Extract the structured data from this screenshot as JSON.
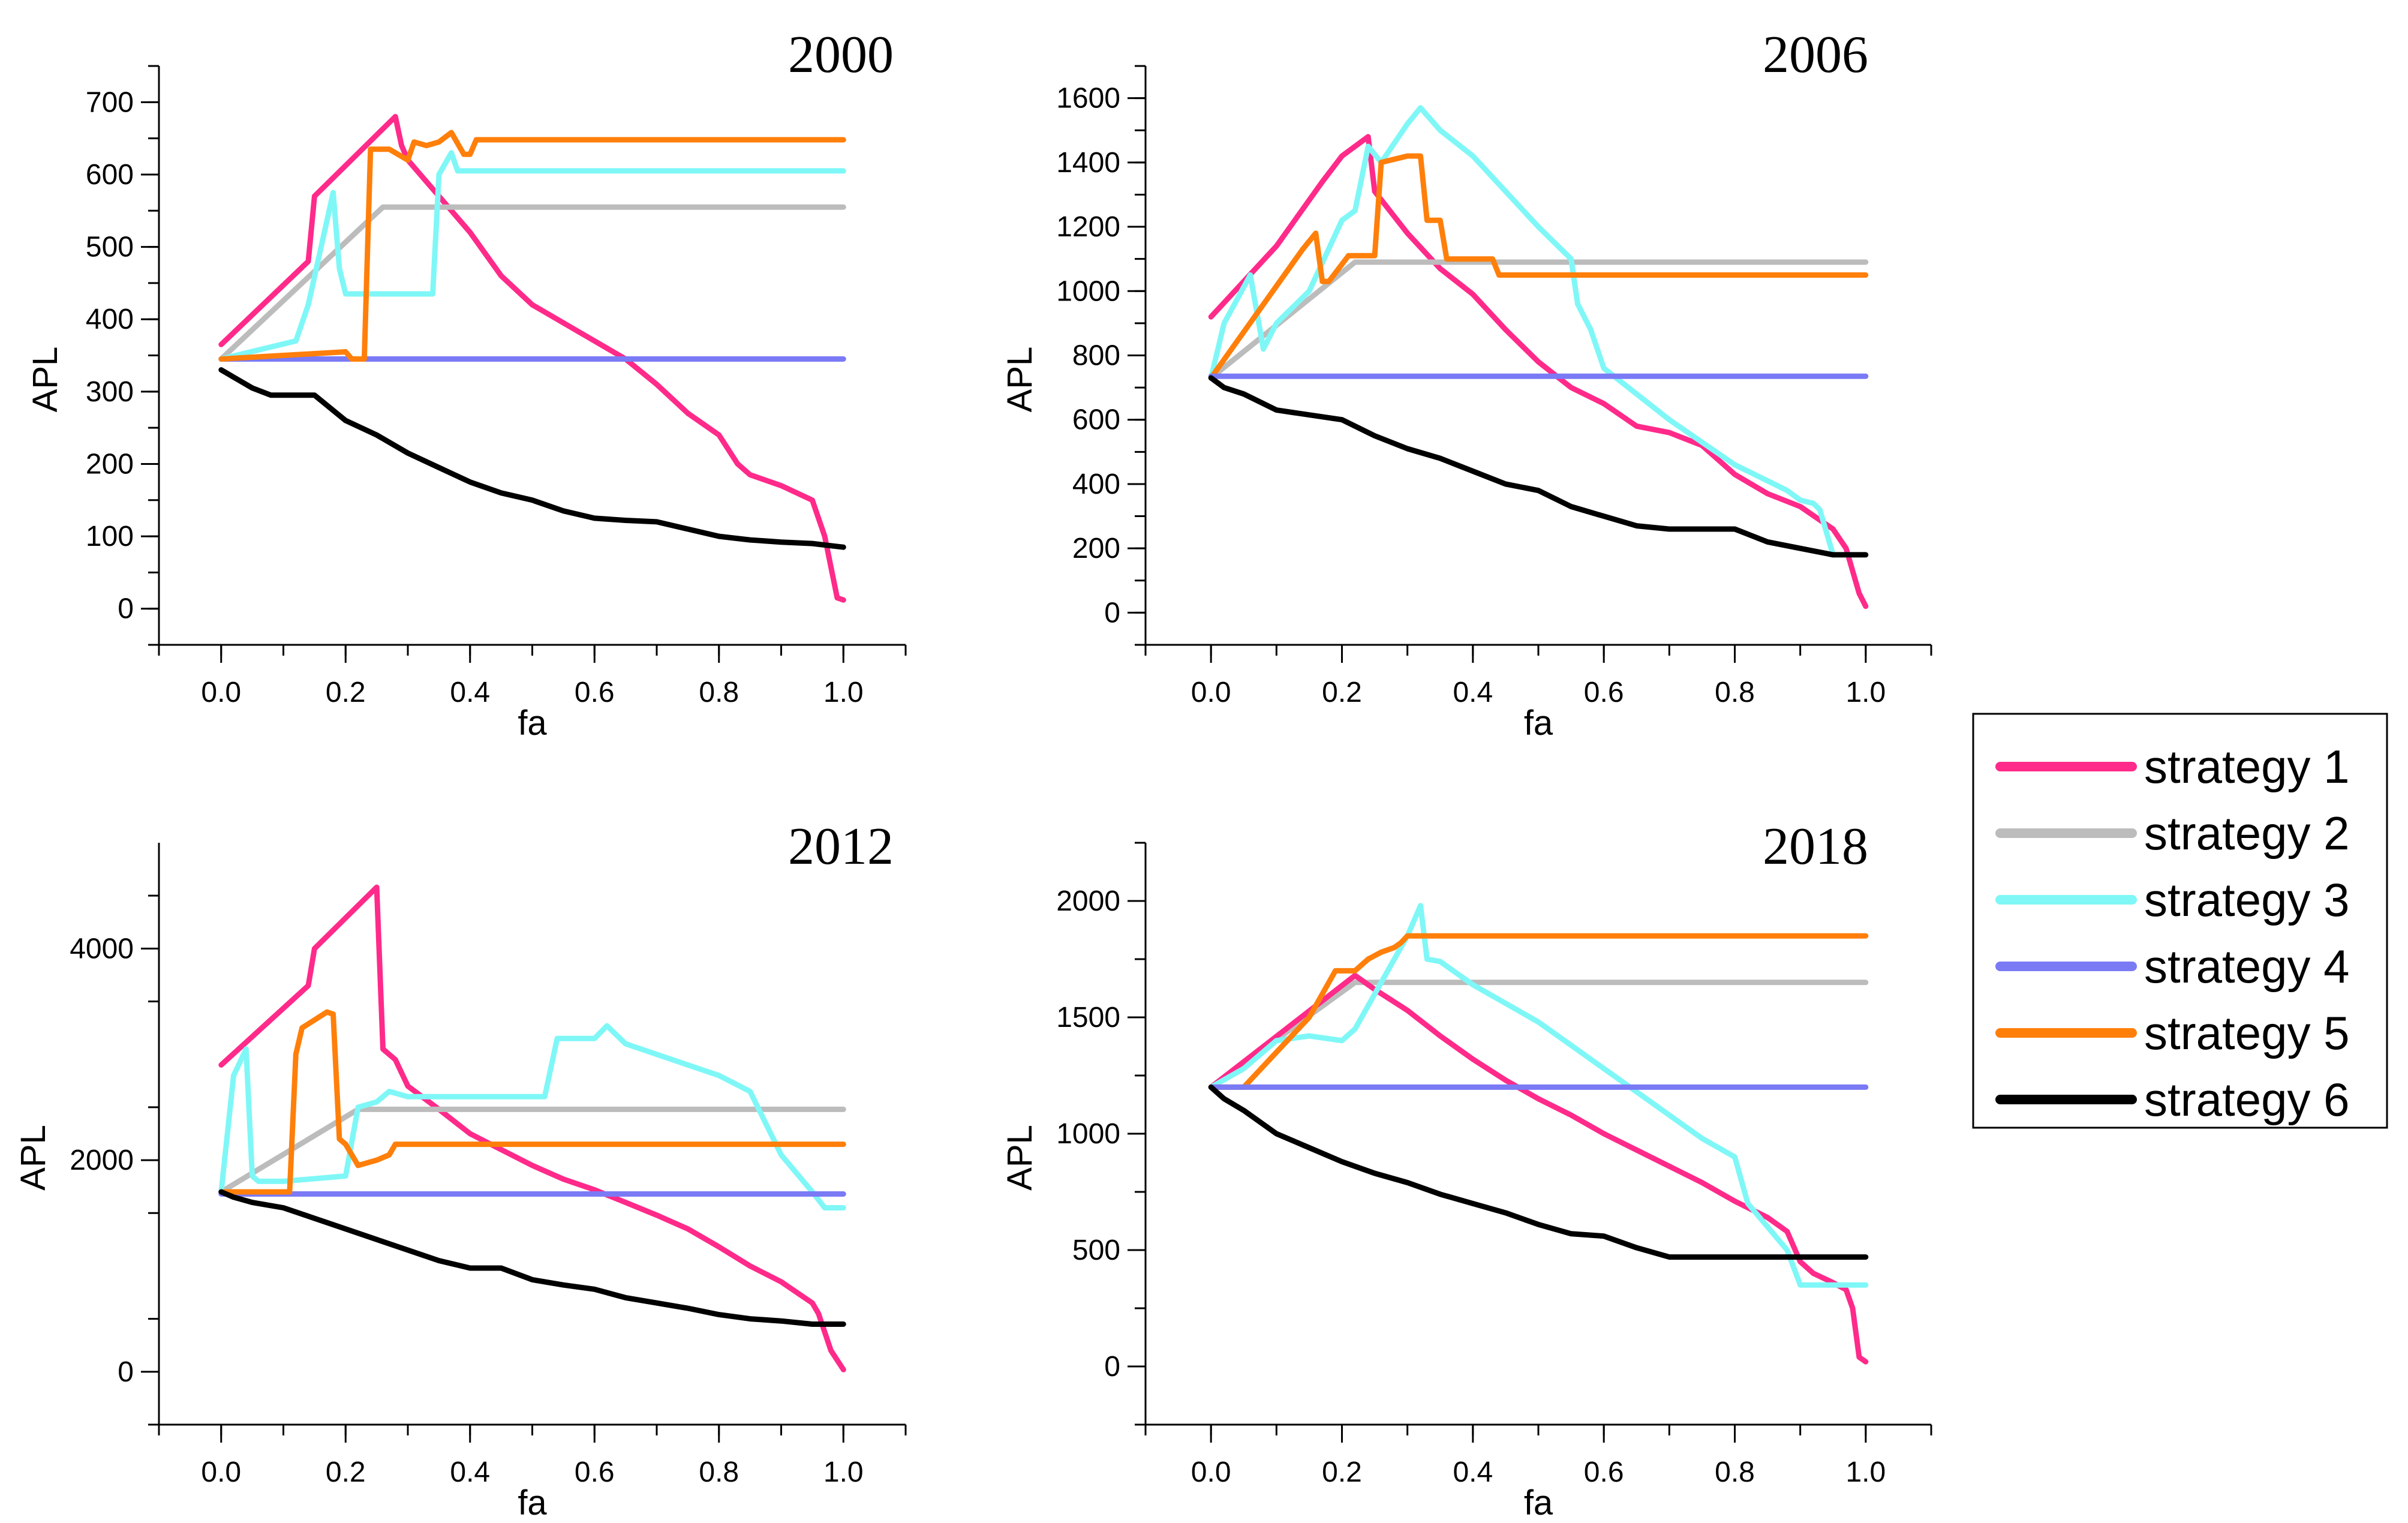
{
  "chart_data": [
    {
      "type": "line",
      "title": "2000",
      "xlabel": "fa",
      "ylabel": "APL",
      "xlim": [
        -0.1,
        1.1
      ],
      "ylim": [
        -50,
        750
      ],
      "xticks": [
        "0.0",
        "0.2",
        "0.4",
        "0.6",
        "0.8",
        "1.0"
      ],
      "yticks": [
        "0",
        "100",
        "200",
        "300",
        "400",
        "500",
        "600",
        "700"
      ],
      "series": [
        {
          "name": "strategy 1",
          "x": [
            0,
            0.14,
            0.15,
            0.28,
            0.29,
            0.3,
            0.35,
            0.4,
            0.45,
            0.5,
            0.6,
            0.65,
            0.7,
            0.75,
            0.8,
            0.83,
            0.85,
            0.9,
            0.95,
            0.97,
            0.99,
            1.0
          ],
          "y": [
            365,
            480,
            570,
            680,
            640,
            620,
            570,
            520,
            460,
            420,
            370,
            345,
            310,
            270,
            240,
            200,
            185,
            170,
            150,
            100,
            15,
            12
          ]
        },
        {
          "name": "strategy 2",
          "x": [
            0,
            0.26,
            1.0
          ],
          "y": [
            345,
            555,
            555
          ]
        },
        {
          "name": "strategy 3",
          "x": [
            0,
            0.12,
            0.14,
            0.18,
            0.19,
            0.2,
            0.34,
            0.35,
            0.37,
            0.38,
            1.0
          ],
          "y": [
            345,
            370,
            420,
            575,
            470,
            435,
            435,
            600,
            630,
            605,
            605
          ]
        },
        {
          "name": "strategy 4",
          "x": [
            0,
            1.0
          ],
          "y": [
            345,
            345
          ]
        },
        {
          "name": "strategy 5",
          "x": [
            0,
            0.2,
            0.21,
            0.23,
            0.24,
            0.27,
            0.3,
            0.31,
            0.33,
            0.35,
            0.37,
            0.39,
            0.4,
            0.41,
            1.0
          ],
          "y": [
            345,
            355,
            345,
            345,
            635,
            635,
            620,
            645,
            640,
            645,
            658,
            628,
            628,
            648,
            648
          ]
        },
        {
          "name": "strategy 6",
          "x": [
            0,
            0.02,
            0.05,
            0.08,
            0.15,
            0.2,
            0.25,
            0.3,
            0.35,
            0.4,
            0.45,
            0.5,
            0.55,
            0.6,
            0.65,
            0.7,
            0.75,
            0.8,
            0.85,
            0.9,
            0.95,
            1.0
          ],
          "y": [
            330,
            320,
            305,
            295,
            295,
            260,
            240,
            215,
            195,
            175,
            160,
            150,
            135,
            125,
            122,
            120,
            110,
            100,
            95,
            92,
            90,
            85
          ]
        }
      ]
    },
    {
      "type": "line",
      "title": "2006",
      "xlabel": "fa",
      "ylabel": "APL",
      "xlim": [
        -0.1,
        1.1
      ],
      "ylim": [
        -100,
        1700
      ],
      "xticks": [
        "0.0",
        "0.2",
        "0.4",
        "0.6",
        "0.8",
        "1.0"
      ],
      "yticks": [
        "0",
        "200",
        "400",
        "600",
        "800",
        "1000",
        "1200",
        "1400",
        "1600"
      ],
      "series": [
        {
          "name": "strategy 1",
          "x": [
            0,
            0.1,
            0.17,
            0.2,
            0.24,
            0.25,
            0.3,
            0.35,
            0.4,
            0.45,
            0.5,
            0.55,
            0.6,
            0.65,
            0.7,
            0.75,
            0.8,
            0.85,
            0.9,
            0.95,
            0.97,
            0.99,
            1.0
          ],
          "y": [
            920,
            1140,
            1340,
            1420,
            1480,
            1310,
            1180,
            1070,
            990,
            880,
            780,
            700,
            650,
            580,
            560,
            520,
            430,
            370,
            330,
            260,
            200,
            60,
            20
          ]
        },
        {
          "name": "strategy 2",
          "x": [
            0,
            0.22,
            1.0
          ],
          "y": [
            730,
            1090,
            1090
          ]
        },
        {
          "name": "strategy 3",
          "x": [
            0,
            0.02,
            0.06,
            0.08,
            0.1,
            0.15,
            0.2,
            0.22,
            0.24,
            0.26,
            0.3,
            0.32,
            0.35,
            0.4,
            0.45,
            0.5,
            0.55,
            0.56,
            0.58,
            0.6,
            0.65,
            0.7,
            0.75,
            0.8,
            0.85,
            0.88,
            0.9,
            0.92,
            0.93,
            0.95,
            1.0
          ],
          "y": [
            730,
            900,
            1050,
            820,
            900,
            1000,
            1220,
            1250,
            1450,
            1400,
            1520,
            1570,
            1500,
            1420,
            1310,
            1200,
            1100,
            960,
            880,
            760,
            680,
            600,
            530,
            460,
            410,
            380,
            350,
            340,
            320,
            180,
            180
          ]
        },
        {
          "name": "strategy 5",
          "x": [
            0,
            0.14,
            0.16,
            0.17,
            0.18,
            0.21,
            0.22,
            0.25,
            0.26,
            0.3,
            0.32,
            0.33,
            0.35,
            0.36,
            0.37,
            0.43,
            0.44,
            1.0
          ],
          "y": [
            730,
            1130,
            1180,
            1030,
            1030,
            1110,
            1110,
            1110,
            1400,
            1420,
            1420,
            1220,
            1220,
            1100,
            1100,
            1100,
            1050,
            1050
          ]
        },
        {
          "name": "strategy 4",
          "x": [
            0,
            1.0
          ],
          "y": [
            735,
            735
          ]
        },
        {
          "name": "strategy 6",
          "x": [
            0,
            0.02,
            0.05,
            0.1,
            0.2,
            0.25,
            0.3,
            0.35,
            0.4,
            0.45,
            0.5,
            0.55,
            0.6,
            0.65,
            0.7,
            0.75,
            0.8,
            0.85,
            0.9,
            0.95,
            1.0
          ],
          "y": [
            730,
            700,
            680,
            630,
            600,
            550,
            510,
            480,
            440,
            400,
            380,
            330,
            300,
            270,
            260,
            260,
            260,
            220,
            200,
            180,
            180
          ]
        }
      ]
    },
    {
      "type": "line",
      "title": "2012",
      "xlabel": "fa",
      "ylabel": "APL",
      "xlim": [
        -0.1,
        1.1
      ],
      "ylim": [
        -500,
        5000
      ],
      "xticks": [
        "0.0",
        "0.2",
        "0.4",
        "0.6",
        "0.8",
        "1.0"
      ],
      "yticks": [
        "0",
        "2000",
        "4000"
      ],
      "series": [
        {
          "name": "strategy 1",
          "x": [
            0,
            0.14,
            0.15,
            0.25,
            0.26,
            0.28,
            0.3,
            0.35,
            0.4,
            0.45,
            0.5,
            0.55,
            0.6,
            0.65,
            0.7,
            0.75,
            0.8,
            0.85,
            0.9,
            0.95,
            0.96,
            0.98,
            1.0
          ],
          "y": [
            2900,
            3650,
            4000,
            4580,
            3050,
            2950,
            2700,
            2480,
            2250,
            2100,
            1950,
            1820,
            1720,
            1600,
            1480,
            1350,
            1180,
            1000,
            850,
            650,
            550,
            200,
            20
          ]
        },
        {
          "name": "strategy 2",
          "x": [
            0,
            0.22,
            1.0
          ],
          "y": [
            1700,
            2480,
            2480
          ]
        },
        {
          "name": "strategy 3",
          "x": [
            0,
            0.02,
            0.04,
            0.05,
            0.06,
            0.1,
            0.2,
            0.22,
            0.25,
            0.27,
            0.3,
            0.52,
            0.54,
            0.6,
            0.62,
            0.65,
            0.7,
            0.75,
            0.8,
            0.85,
            0.9,
            0.95,
            0.97,
            1.0
          ],
          "y": [
            1700,
            2800,
            3050,
            1850,
            1800,
            1800,
            1850,
            2500,
            2550,
            2650,
            2600,
            2600,
            3150,
            3150,
            3270,
            3100,
            3000,
            2900,
            2800,
            2650,
            2050,
            1700,
            1550,
            1550
          ]
        },
        {
          "name": "strategy 4",
          "x": [
            0,
            1.0
          ],
          "y": [
            1680,
            1680
          ]
        },
        {
          "name": "strategy 5",
          "x": [
            0,
            0.11,
            0.12,
            0.13,
            0.17,
            0.18,
            0.19,
            0.2,
            0.22,
            0.25,
            0.27,
            0.28,
            1.0
          ],
          "y": [
            1700,
            1700,
            3000,
            3250,
            3400,
            3380,
            2200,
            2150,
            1950,
            2000,
            2050,
            2150,
            2150
          ]
        },
        {
          "name": "strategy 6",
          "x": [
            0,
            0.02,
            0.05,
            0.1,
            0.15,
            0.2,
            0.25,
            0.3,
            0.35,
            0.4,
            0.45,
            0.5,
            0.55,
            0.6,
            0.65,
            0.7,
            0.75,
            0.8,
            0.85,
            0.9,
            0.95,
            1.0
          ],
          "y": [
            1700,
            1650,
            1600,
            1550,
            1450,
            1350,
            1250,
            1150,
            1050,
            980,
            980,
            870,
            820,
            780,
            700,
            650,
            600,
            540,
            500,
            480,
            450,
            450
          ]
        }
      ]
    },
    {
      "type": "line",
      "title": "2018",
      "xlabel": "fa",
      "ylabel": "APL",
      "xlim": [
        -0.1,
        1.1
      ],
      "ylim": [
        -250,
        2250
      ],
      "xticks": [
        "0.0",
        "0.2",
        "0.4",
        "0.6",
        "0.8",
        "1.0"
      ],
      "yticks": [
        "0",
        "500",
        "1000",
        "1500",
        "2000"
      ],
      "series": [
        {
          "name": "strategy 2",
          "x": [
            0,
            0.22,
            1.0
          ],
          "y": [
            1200,
            1650,
            1650
          ]
        },
        {
          "name": "strategy 1",
          "x": [
            0,
            0.22,
            0.25,
            0.3,
            0.35,
            0.4,
            0.45,
            0.5,
            0.55,
            0.6,
            0.65,
            0.7,
            0.75,
            0.8,
            0.85,
            0.88,
            0.9,
            0.92,
            0.95,
            0.97,
            0.98,
            0.99,
            1.0
          ],
          "y": [
            1200,
            1680,
            1620,
            1530,
            1420,
            1320,
            1230,
            1150,
            1080,
            1000,
            930,
            860,
            790,
            710,
            640,
            580,
            450,
            400,
            360,
            330,
            250,
            40,
            20
          ]
        },
        {
          "name": "strategy 3",
          "x": [
            0,
            0.05,
            0.1,
            0.15,
            0.2,
            0.22,
            0.25,
            0.28,
            0.3,
            0.32,
            0.33,
            0.35,
            0.4,
            0.45,
            0.5,
            0.55,
            0.6,
            0.65,
            0.7,
            0.75,
            0.8,
            0.82,
            0.85,
            0.88,
            0.9,
            0.95,
            1.0
          ],
          "y": [
            1200,
            1280,
            1400,
            1420,
            1400,
            1450,
            1600,
            1750,
            1850,
            1980,
            1750,
            1740,
            1640,
            1560,
            1480,
            1380,
            1280,
            1180,
            1080,
            980,
            900,
            700,
            600,
            500,
            350,
            350,
            350
          ]
        },
        {
          "name": "strategy 5",
          "x": [
            0,
            0.05,
            0.1,
            0.15,
            0.19,
            0.2,
            0.22,
            0.24,
            0.26,
            0.28,
            0.29,
            0.3,
            1.0
          ],
          "y": [
            1200,
            1200,
            1350,
            1500,
            1700,
            1700,
            1700,
            1750,
            1780,
            1800,
            1820,
            1850,
            1850
          ]
        },
        {
          "name": "strategy 4",
          "x": [
            0,
            1.0
          ],
          "y": [
            1200,
            1200
          ]
        },
        {
          "name": "strategy 6",
          "x": [
            0,
            0.02,
            0.05,
            0.1,
            0.15,
            0.2,
            0.25,
            0.3,
            0.35,
            0.4,
            0.45,
            0.5,
            0.55,
            0.6,
            0.65,
            0.7,
            0.75,
            0.8,
            0.85,
            0.9,
            0.95,
            1.0
          ],
          "y": [
            1200,
            1150,
            1100,
            1000,
            940,
            880,
            830,
            790,
            740,
            700,
            660,
            610,
            570,
            560,
            510,
            470,
            470,
            470,
            470,
            470,
            470,
            470
          ]
        }
      ]
    }
  ],
  "legend": {
    "position": "right",
    "items": [
      {
        "label": "strategy 1",
        "color": "#ff2a8a"
      },
      {
        "label": "strategy 2",
        "color": "#bcbcbc"
      },
      {
        "label": "strategy 3",
        "color": "#7ff7f7"
      },
      {
        "label": "strategy 4",
        "color": "#7a7af5"
      },
      {
        "label": "strategy 5",
        "color": "#ff7f0a"
      },
      {
        "label": "strategy 6",
        "color": "#000000"
      }
    ]
  }
}
